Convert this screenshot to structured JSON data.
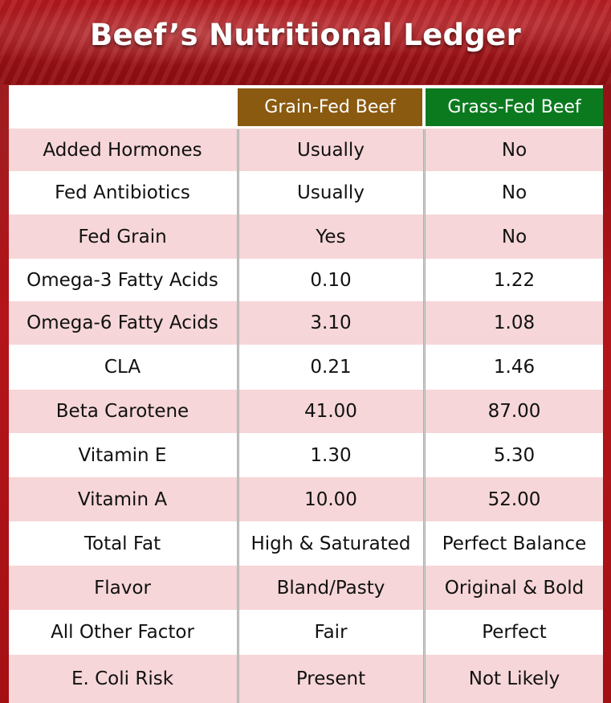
{
  "title": "Beef’s Nutritional Ledger",
  "columns": {
    "grain": "Grain-Fed Beef",
    "grass": "Grass-Fed Beef"
  },
  "colors": {
    "grain_header": "#8a5a10",
    "grass_header": "#0b7a1f",
    "pink_row": "#f6d6d8",
    "frame_red": "#9b0d10"
  },
  "rows": [
    {
      "label": "Added Hormones",
      "grain": "Usually",
      "grass": "No"
    },
    {
      "label": "Fed Antibiotics",
      "grain": "Usually",
      "grass": "No"
    },
    {
      "label": "Fed Grain",
      "grain": "Yes",
      "grass": "No"
    },
    {
      "label": "Omega-3 Fatty Acids",
      "grain": "0.10",
      "grass": "1.22"
    },
    {
      "label": "Omega-6 Fatty Acids",
      "grain": "3.10",
      "grass": "1.08"
    },
    {
      "label": "CLA",
      "grain": "0.21",
      "grass": "1.46"
    },
    {
      "label": "Beta Carotene",
      "grain": "41.00",
      "grass": "87.00"
    },
    {
      "label": "Vitamin E",
      "grain": "1.30",
      "grass": "5.30"
    },
    {
      "label": "Vitamin A",
      "grain": "10.00",
      "grass": "52.00"
    },
    {
      "label": "Total Fat",
      "grain": "High & Saturated",
      "grass": "Perfect Balance"
    },
    {
      "label": "Flavor",
      "grain": "Bland/Pasty",
      "grass": "Original & Bold"
    },
    {
      "label": "All Other Factor",
      "grain": "Fair",
      "grass": "Perfect"
    },
    {
      "label": "E. Coli Risk",
      "grain": "Present",
      "grass": "Not Likely"
    }
  ]
}
